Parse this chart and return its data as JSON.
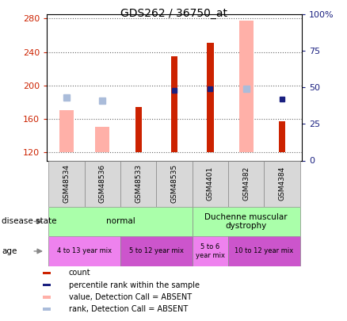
{
  "title": "GDS262 / 36750_at",
  "samples": [
    "GSM48534",
    "GSM48536",
    "GSM48533",
    "GSM48535",
    "GSM4401",
    "GSM4382",
    "GSM4384"
  ],
  "count_values": [
    null,
    null,
    174,
    235,
    251,
    null,
    157
  ],
  "rank_values": [
    null,
    null,
    null,
    48,
    49,
    null,
    42
  ],
  "absent_value_values": [
    170,
    150,
    null,
    null,
    null,
    278,
    null
  ],
  "absent_rank_values": [
    43,
    41,
    null,
    null,
    null,
    49,
    null
  ],
  "ylim_left": [
    110,
    285
  ],
  "ylim_right": [
    0,
    100
  ],
  "yticks_left": [
    120,
    160,
    200,
    240,
    280
  ],
  "yticks_right": [
    0,
    25,
    50,
    75,
    100
  ],
  "count_color": "#cc2200",
  "rank_color": "#1a2080",
  "absent_value_color": "#ffb0a8",
  "absent_rank_color": "#aabcda",
  "bar_base": 120,
  "label_color_left": "#cc2200",
  "label_color_right": "#1a2080",
  "disease_groups": [
    {
      "label": "normal",
      "start": 0,
      "end": 3,
      "color": "#aaffaa"
    },
    {
      "label": "Duchenne muscular\ndystrophy",
      "start": 4,
      "end": 6,
      "color": "#aaffaa"
    }
  ],
  "age_groups": [
    {
      "label": "4 to 13 year mix",
      "start": 0,
      "end": 1,
      "color": "#ee82ee"
    },
    {
      "label": "5 to 12 year mix",
      "start": 2,
      "end": 3,
      "color": "#cc55cc"
    },
    {
      "label": "5 to 6\nyear mix",
      "start": 4,
      "end": 4,
      "color": "#ee82ee"
    },
    {
      "label": "10 to 12 year mix",
      "start": 5,
      "end": 6,
      "color": "#cc55cc"
    }
  ],
  "legend_items": [
    {
      "label": "count",
      "color": "#cc2200"
    },
    {
      "label": "percentile rank within the sample",
      "color": "#1a2080"
    },
    {
      "label": "value, Detection Call = ABSENT",
      "color": "#ffb0a8"
    },
    {
      "label": "rank, Detection Call = ABSENT",
      "color": "#aabcda"
    }
  ]
}
